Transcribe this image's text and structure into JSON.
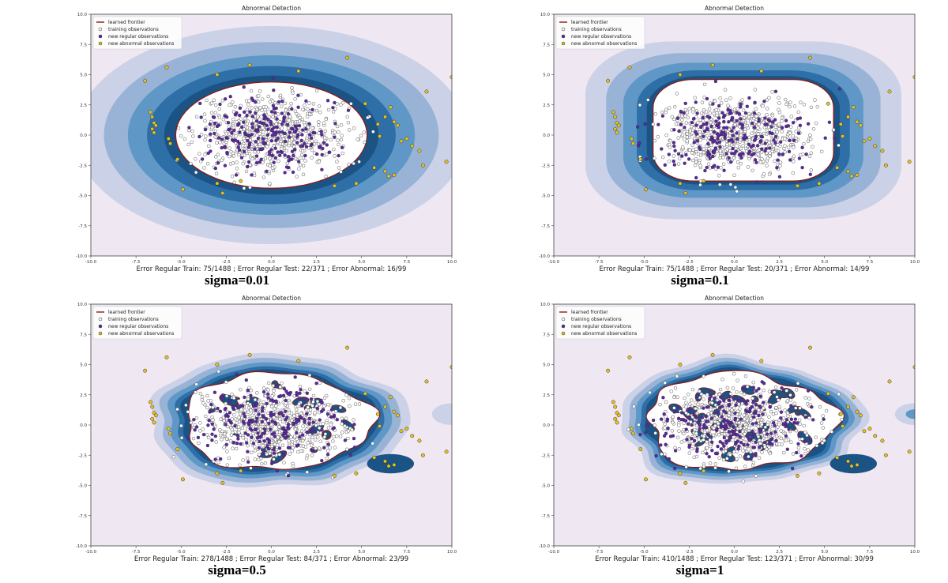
{
  "chart_data": [
    {
      "type": "contour",
      "title": "Abnormal Detection",
      "xlabel": "Error Regular Train: 75/1488 ; Error Regular Test: 22/371 ; Error Abnormal: 16/99",
      "caption": "sigma=0.01",
      "sigma": 0.01,
      "xlim": [
        -10,
        10
      ],
      "ylim": [
        -10,
        10
      ],
      "xticks": [
        "-10.0",
        "-7.5",
        "-5.0",
        "-2.5",
        "0.0",
        "2.5",
        "5.0",
        "7.5",
        "10.0"
      ],
      "yticks": [
        "10.0",
        "7.5",
        "5.0",
        "2.5",
        "0.0",
        "-2.5",
        "-5.0",
        "-7.5",
        "-10.0"
      ],
      "legend": {
        "position": "upper-left",
        "entries": [
          "learned frontier",
          "training observations",
          "new regular observations",
          "new abnormal observations"
        ]
      },
      "errors": {
        "regular_train": "75/1488",
        "regular_test": "22/371",
        "abnormal": "16/99"
      },
      "frontier": {
        "center": [
          0.0,
          0.0
        ],
        "semi_axes": [
          5.3,
          4.4
        ]
      }
    },
    {
      "type": "contour",
      "title": "Abnormal Detection",
      "xlabel": "Error Regular Train: 75/1488 ; Error Regular Test: 20/371 ; Error Abnormal: 14/99",
      "caption": "sigma=0.1",
      "sigma": 0.1,
      "xlim": [
        -10,
        10
      ],
      "ylim": [
        -10,
        10
      ],
      "xticks": [
        "-10.0",
        "-7.5",
        "-5.0",
        "-2.5",
        "0.0",
        "2.5",
        "5.0",
        "7.5",
        "10.0"
      ],
      "yticks": [
        "10.0",
        "7.5",
        "5.0",
        "2.5",
        "0.0",
        "-2.5",
        "-5.0",
        "-7.5",
        "-10.0"
      ],
      "legend": {
        "position": "upper-left",
        "entries": [
          "learned frontier",
          "training observations",
          "new regular observations",
          "new abnormal observations"
        ]
      },
      "errors": {
        "regular_train": "75/1488",
        "regular_test": "20/371",
        "abnormal": "14/99"
      },
      "frontier": {
        "center": [
          0.5,
          0.4
        ],
        "semi_axes": [
          5.0,
          4.2
        ]
      }
    },
    {
      "type": "contour",
      "title": "Abnormal Detection",
      "xlabel": "Error Regular Train: 278/1488 ; Error Regular Test: 84/371 ; Error Abnormal: 23/99",
      "caption": "sigma=0.5",
      "sigma": 0.5,
      "xlim": [
        -10,
        10
      ],
      "ylim": [
        -10,
        10
      ],
      "xticks": [
        "-10.0",
        "-7.5",
        "-5.0",
        "-2.5",
        "0.0",
        "2.5",
        "5.0",
        "7.5",
        "10.0"
      ],
      "yticks": [
        "10.0",
        "7.5",
        "5.0",
        "2.5",
        "0.0",
        "-2.5",
        "-5.0",
        "-7.5",
        "-10.0"
      ],
      "legend": {
        "position": "upper-left",
        "entries": [
          "learned frontier",
          "training observations",
          "new regular observations",
          "new abnormal observations"
        ]
      },
      "errors": {
        "regular_train": "278/1488",
        "regular_test": "84/371",
        "abnormal": "23/99"
      },
      "frontier": {
        "center": [
          0.3,
          0.3
        ],
        "semi_axes": [
          5.2,
          4.0
        ]
      }
    },
    {
      "type": "contour",
      "title": "Abnormal Detection",
      "xlabel": "Error Regular Train: 410/1488 ; Error Regular Test: 123/371 ; Error Abnormal: 30/99",
      "caption": "sigma=1",
      "sigma": 1,
      "xlim": [
        -10,
        10
      ],
      "ylim": [
        -10,
        10
      ],
      "xticks": [
        "-10.0",
        "-7.5",
        "-5.0",
        "-2.5",
        "0.0",
        "2.5",
        "5.0",
        "7.5",
        "10.0"
      ],
      "yticks": [
        "10.0",
        "7.5",
        "5.0",
        "2.5",
        "0.0",
        "-2.5",
        "-5.0",
        "-7.5",
        "-10.0"
      ],
      "legend": {
        "position": "upper-left",
        "entries": [
          "learned frontier",
          "training observations",
          "new regular observations",
          "new abnormal observations"
        ]
      },
      "errors": {
        "regular_train": "410/1488",
        "regular_test": "123/371",
        "abnormal": "30/99"
      },
      "frontier": {
        "center": [
          0.3,
          0.3
        ],
        "semi_axes": [
          5.2,
          4.0
        ]
      }
    }
  ],
  "colors": {
    "background": "#efe7f1",
    "band1": "#cbd1e6",
    "band2": "#98b3d6",
    "band3": "#5f98c6",
    "band4": "#2f6fa8",
    "band5": "#1b5384",
    "inside": "#ffffff",
    "frontier": "#8b1a1a",
    "training": "#ffffff",
    "regular": "#5b2a9e",
    "abnormal": "#e8c21a"
  }
}
